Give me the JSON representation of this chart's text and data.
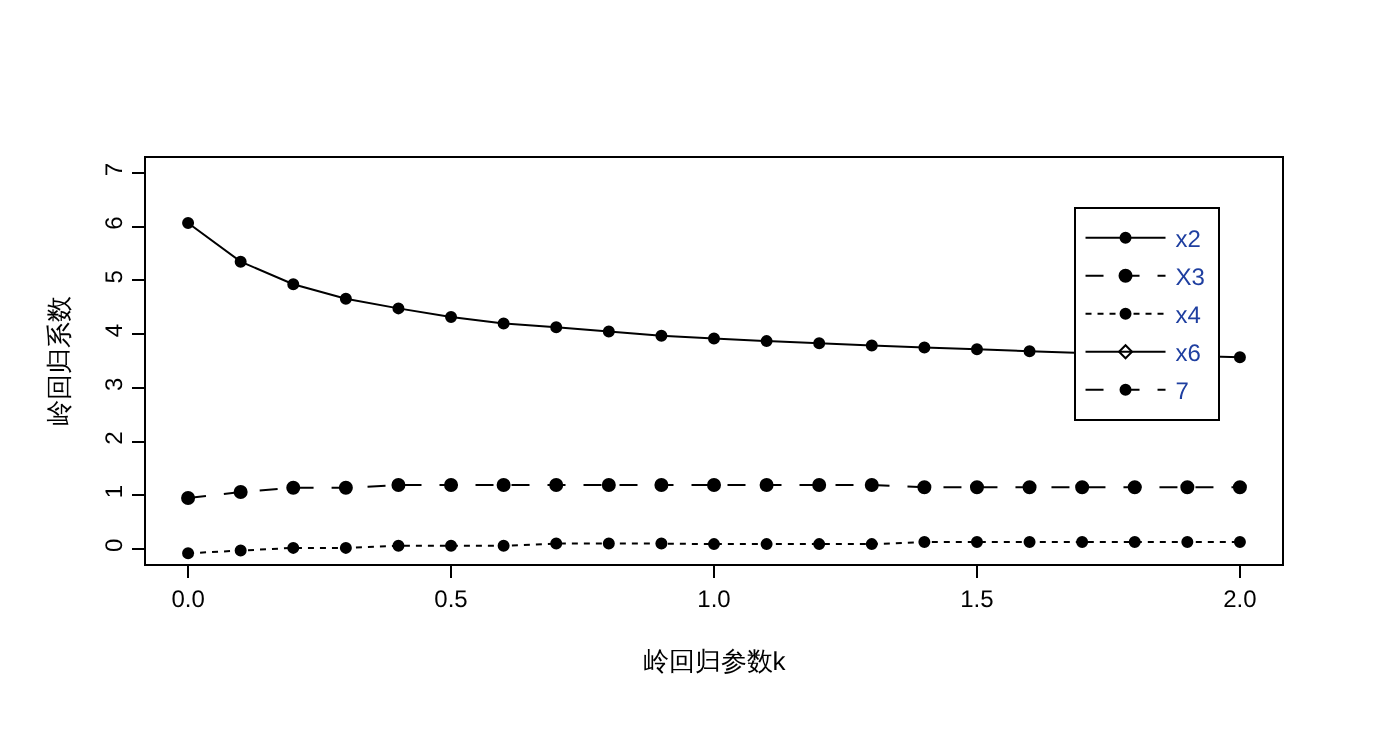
{
  "chart_data": {
    "type": "line",
    "xlabel": "岭回归参数k",
    "ylabel": "岭回归系数",
    "x": [
      0.0,
      0.1,
      0.2,
      0.3,
      0.4,
      0.5,
      0.6,
      0.7,
      0.8,
      0.9,
      1.0,
      1.1,
      1.2,
      1.3,
      1.4,
      1.5,
      1.6,
      1.7,
      1.8,
      1.9,
      2.0
    ],
    "xlim": [
      -0.08,
      2.08
    ],
    "xticks": [
      {
        "value": 0,
        "label": "0.0"
      },
      {
        "value": 0.5,
        "label": "0.5"
      },
      {
        "value": 1,
        "label": "1.0"
      },
      {
        "value": 1.5,
        "label": "1.5"
      },
      {
        "value": 2,
        "label": "2.0"
      }
    ],
    "ylim": [
      -0.28,
      7.28
    ],
    "yticks": [
      0,
      1,
      2,
      3,
      4,
      5,
      6,
      7
    ],
    "legend": "top right",
    "series": [
      {
        "name": "x2",
        "color": "#000000",
        "line_style": "solid",
        "marker": "circle",
        "values": [
          6.07,
          5.35,
          4.93,
          4.66,
          4.48,
          4.32,
          4.2,
          4.13,
          4.05,
          3.97,
          3.92,
          3.87,
          3.83,
          3.79,
          3.75,
          3.72,
          3.68,
          3.65,
          null,
          null,
          3.57
        ]
      },
      {
        "name": "X3",
        "color": "#000000",
        "line_style": "dashed",
        "marker": "circle",
        "values": [
          0.95,
          1.06,
          1.14,
          1.14,
          1.19,
          1.19,
          1.19,
          1.19,
          1.19,
          1.19,
          1.19,
          1.19,
          1.19,
          1.19,
          1.15,
          1.15,
          1.15,
          1.15,
          1.15,
          1.15,
          1.15
        ]
      },
      {
        "name": "x4",
        "color": "#000000",
        "line_style": "dotted",
        "marker": "circle",
        "values": [
          -0.08,
          -0.03,
          0.02,
          0.02,
          0.06,
          0.06,
          0.06,
          0.1,
          0.1,
          0.1,
          0.09,
          0.09,
          0.09,
          0.09,
          0.13,
          0.13,
          0.13,
          0.13,
          0.13,
          0.13,
          0.13
        ]
      },
      {
        "name": "x6",
        "color": "#000000",
        "line_style": "solid",
        "marker": "diamond",
        "values": [
          null,
          null,
          null,
          null,
          null,
          null,
          null,
          null,
          null,
          null,
          null,
          null,
          null,
          null,
          null,
          null,
          null,
          null,
          null,
          null,
          null
        ]
      },
      {
        "name": "7",
        "color": "#000000",
        "line_style": "dashed",
        "marker": "circle",
        "values": [
          null,
          null,
          null,
          null,
          null,
          null,
          null,
          null,
          null,
          null,
          null,
          null,
          null,
          null,
          null,
          null,
          null,
          null,
          null,
          null,
          null
        ]
      }
    ]
  }
}
